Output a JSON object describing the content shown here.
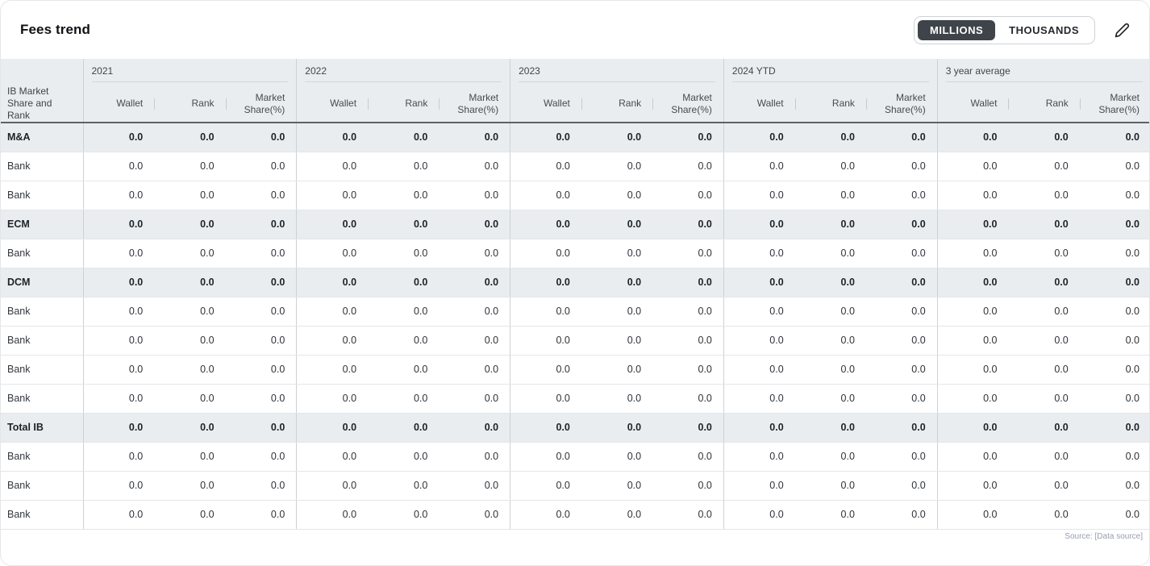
{
  "header": {
    "title": "Fees trend"
  },
  "toolbar": {
    "unit_options": [
      {
        "label": "MILLIONS",
        "selected": true
      },
      {
        "label": "THOUSANDS",
        "selected": false
      }
    ],
    "edit_icon": "pencil-icon"
  },
  "table": {
    "row_header": "IB Market Share and Rank",
    "column_groups": [
      "2021",
      "2022",
      "2023",
      "2024 YTD",
      "3 year average"
    ],
    "sub_columns": [
      "Wallet",
      "Rank",
      "Market Share(%)"
    ],
    "rows": [
      {
        "label": "M&A",
        "emphasis": true,
        "values": [
          "0.0",
          "0.0",
          "0.0",
          "0.0",
          "0.0",
          "0.0",
          "0.0",
          "0.0",
          "0.0",
          "0.0",
          "0.0",
          "0.0",
          "0.0",
          "0.0",
          "0.0"
        ]
      },
      {
        "label": "Bank",
        "emphasis": false,
        "values": [
          "0.0",
          "0.0",
          "0.0",
          "0.0",
          "0.0",
          "0.0",
          "0.0",
          "0.0",
          "0.0",
          "0.0",
          "0.0",
          "0.0",
          "0.0",
          "0.0",
          "0.0"
        ]
      },
      {
        "label": "Bank",
        "emphasis": false,
        "values": [
          "0.0",
          "0.0",
          "0.0",
          "0.0",
          "0.0",
          "0.0",
          "0.0",
          "0.0",
          "0.0",
          "0.0",
          "0.0",
          "0.0",
          "0.0",
          "0.0",
          "0.0"
        ]
      },
      {
        "label": "ECM",
        "emphasis": true,
        "values": [
          "0.0",
          "0.0",
          "0.0",
          "0.0",
          "0.0",
          "0.0",
          "0.0",
          "0.0",
          "0.0",
          "0.0",
          "0.0",
          "0.0",
          "0.0",
          "0.0",
          "0.0"
        ]
      },
      {
        "label": "Bank",
        "emphasis": false,
        "values": [
          "0.0",
          "0.0",
          "0.0",
          "0.0",
          "0.0",
          "0.0",
          "0.0",
          "0.0",
          "0.0",
          "0.0",
          "0.0",
          "0.0",
          "0.0",
          "0.0",
          "0.0"
        ]
      },
      {
        "label": "DCM",
        "emphasis": true,
        "values": [
          "0.0",
          "0.0",
          "0.0",
          "0.0",
          "0.0",
          "0.0",
          "0.0",
          "0.0",
          "0.0",
          "0.0",
          "0.0",
          "0.0",
          "0.0",
          "0.0",
          "0.0"
        ]
      },
      {
        "label": "Bank",
        "emphasis": false,
        "values": [
          "0.0",
          "0.0",
          "0.0",
          "0.0",
          "0.0",
          "0.0",
          "0.0",
          "0.0",
          "0.0",
          "0.0",
          "0.0",
          "0.0",
          "0.0",
          "0.0",
          "0.0"
        ]
      },
      {
        "label": "Bank",
        "emphasis": false,
        "values": [
          "0.0",
          "0.0",
          "0.0",
          "0.0",
          "0.0",
          "0.0",
          "0.0",
          "0.0",
          "0.0",
          "0.0",
          "0.0",
          "0.0",
          "0.0",
          "0.0",
          "0.0"
        ]
      },
      {
        "label": "Bank",
        "emphasis": false,
        "values": [
          "0.0",
          "0.0",
          "0.0",
          "0.0",
          "0.0",
          "0.0",
          "0.0",
          "0.0",
          "0.0",
          "0.0",
          "0.0",
          "0.0",
          "0.0",
          "0.0",
          "0.0"
        ]
      },
      {
        "label": "Bank",
        "emphasis": false,
        "values": [
          "0.0",
          "0.0",
          "0.0",
          "0.0",
          "0.0",
          "0.0",
          "0.0",
          "0.0",
          "0.0",
          "0.0",
          "0.0",
          "0.0",
          "0.0",
          "0.0",
          "0.0"
        ]
      },
      {
        "label": "Total IB",
        "emphasis": true,
        "values": [
          "0.0",
          "0.0",
          "0.0",
          "0.0",
          "0.0",
          "0.0",
          "0.0",
          "0.0",
          "0.0",
          "0.0",
          "0.0",
          "0.0",
          "0.0",
          "0.0",
          "0.0"
        ]
      },
      {
        "label": "Bank",
        "emphasis": false,
        "values": [
          "0.0",
          "0.0",
          "0.0",
          "0.0",
          "0.0",
          "0.0",
          "0.0",
          "0.0",
          "0.0",
          "0.0",
          "0.0",
          "0.0",
          "0.0",
          "0.0",
          "0.0"
        ]
      },
      {
        "label": "Bank",
        "emphasis": false,
        "values": [
          "0.0",
          "0.0",
          "0.0",
          "0.0",
          "0.0",
          "0.0",
          "0.0",
          "0.0",
          "0.0",
          "0.0",
          "0.0",
          "0.0",
          "0.0",
          "0.0",
          "0.0"
        ]
      },
      {
        "label": "Bank",
        "emphasis": false,
        "values": [
          "0.0",
          "0.0",
          "0.0",
          "0.0",
          "0.0",
          "0.0",
          "0.0",
          "0.0",
          "0.0",
          "0.0",
          "0.0",
          "0.0",
          "0.0",
          "0.0",
          "0.0"
        ]
      }
    ]
  },
  "footer": {
    "source": "Source: [Data source]"
  }
}
